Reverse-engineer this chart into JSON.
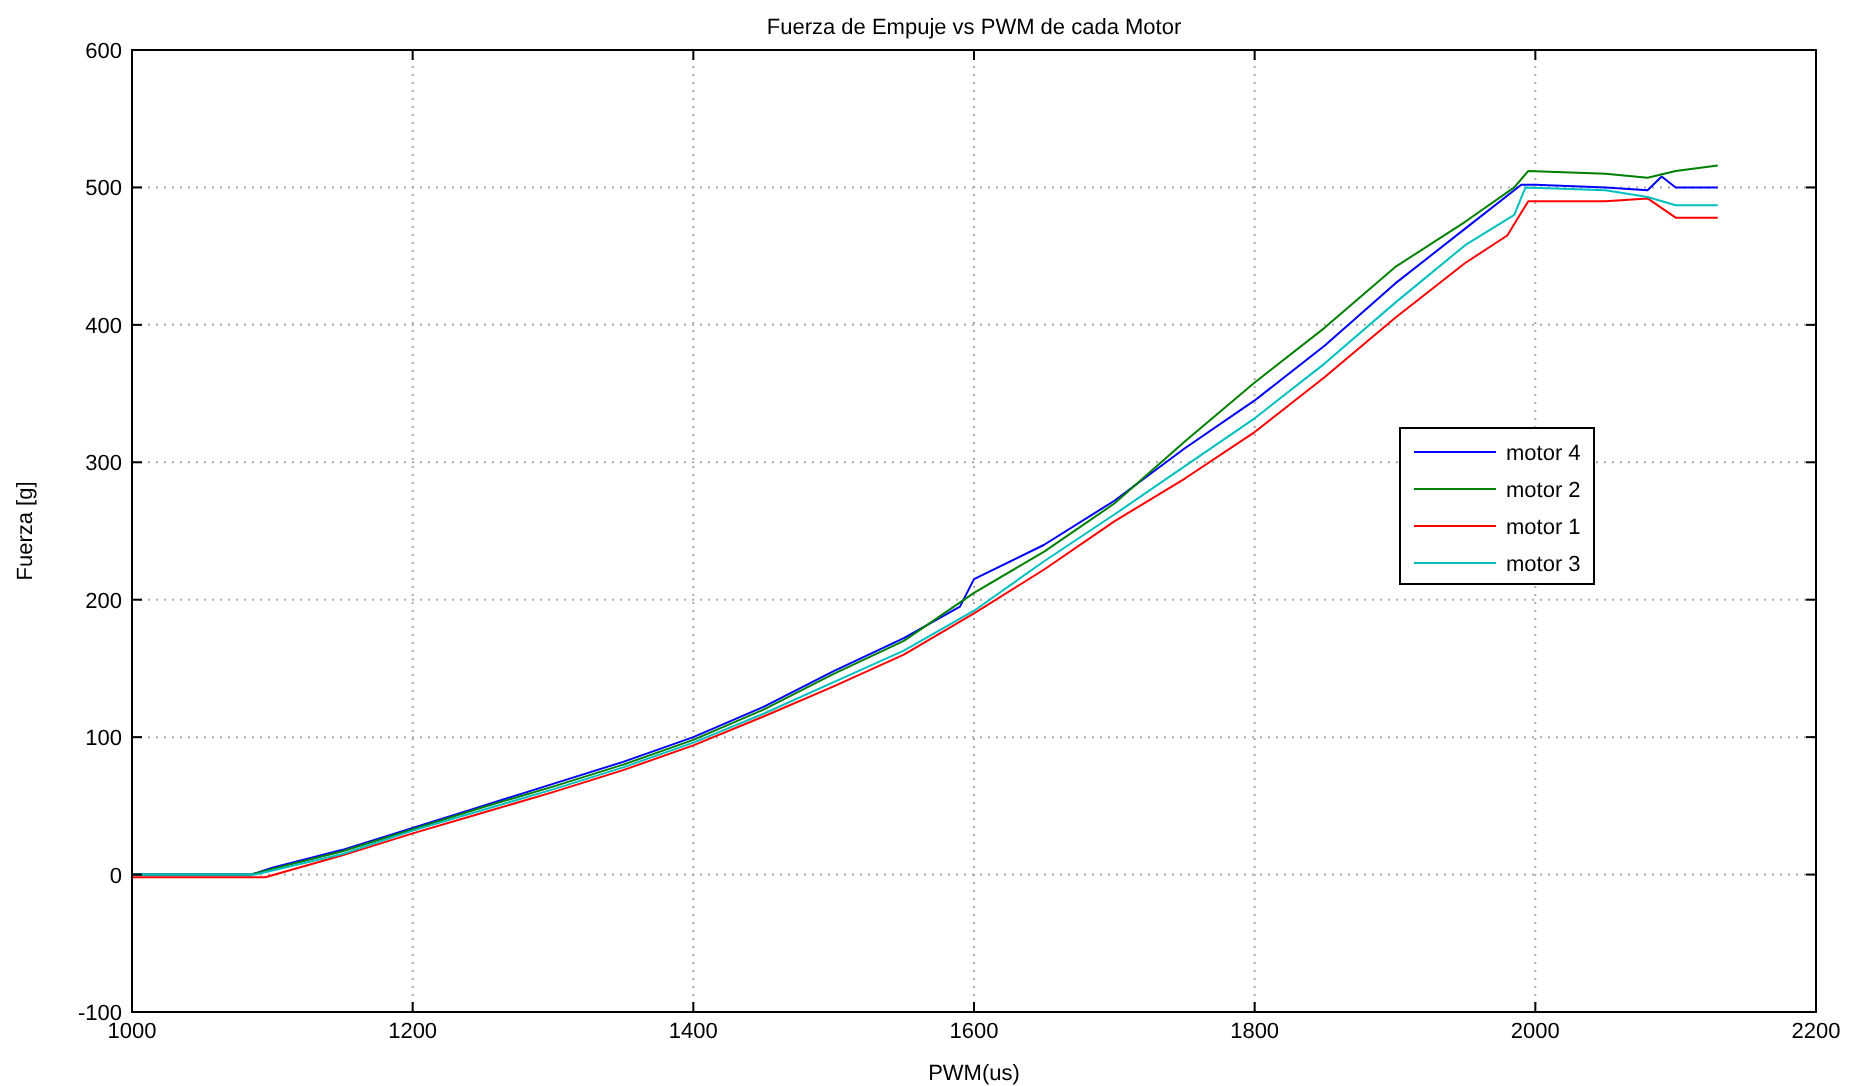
{
  "chart_data": {
    "type": "line",
    "title": "Fuerza de Empuje  vs PWM de cada Motor",
    "xlabel": "PWM(us)",
    "ylabel": "Fuerza [g]",
    "xlim": [
      1000,
      2200
    ],
    "xticks": [
      1000,
      1200,
      1400,
      1600,
      1800,
      2000,
      2200
    ],
    "ylim": [
      -100,
      600
    ],
    "yticks": [
      -100,
      0,
      100,
      200,
      300,
      400,
      500,
      600
    ],
    "grid": true,
    "legend": "right",
    "line_style": "solid",
    "marker": "none",
    "series": [
      {
        "name": "motor 4",
        "color": "#0000ff",
        "x": [
          1000,
          1085,
          1100,
          1150,
          1200,
          1250,
          1300,
          1350,
          1400,
          1450,
          1500,
          1550,
          1590,
          1600,
          1650,
          1700,
          1750,
          1800,
          1850,
          1900,
          1950,
          1990,
          2000,
          2050,
          2080,
          2090,
          2100,
          2130
        ],
        "values": [
          0,
          0,
          5,
          18,
          34,
          50,
          66,
          82,
          100,
          122,
          148,
          172,
          195,
          215,
          240,
          272,
          310,
          345,
          385,
          430,
          470,
          502,
          502,
          500,
          498,
          508,
          500,
          500
        ]
      },
      {
        "name": "motor 2",
        "color": "#008000",
        "x": [
          1000,
          1085,
          1100,
          1150,
          1200,
          1250,
          1300,
          1350,
          1400,
          1450,
          1500,
          1550,
          1600,
          1650,
          1700,
          1750,
          1800,
          1850,
          1900,
          1950,
          1985,
          1995,
          2050,
          2080,
          2100,
          2130
        ],
        "values": [
          0,
          0,
          4,
          17,
          33,
          49,
          64,
          80,
          98,
          120,
          146,
          170,
          205,
          235,
          270,
          315,
          358,
          398,
          442,
          475,
          500,
          512,
          510,
          507,
          512,
          516
        ]
      },
      {
        "name": "motor 1",
        "color": "#ff0000",
        "x": [
          1000,
          1095,
          1150,
          1200,
          1250,
          1300,
          1350,
          1400,
          1450,
          1500,
          1550,
          1600,
          1650,
          1700,
          1750,
          1800,
          1850,
          1900,
          1950,
          1980,
          1995,
          2050,
          2080,
          2100,
          2130
        ],
        "values": [
          -2,
          -2,
          14,
          30,
          45,
          60,
          76,
          94,
          115,
          137,
          160,
          190,
          222,
          257,
          288,
          322,
          362,
          405,
          445,
          465,
          490,
          490,
          492,
          478,
          478
        ]
      },
      {
        "name": "motor 3",
        "color": "#00bfbf",
        "x": [
          1000,
          1088,
          1150,
          1200,
          1250,
          1300,
          1350,
          1400,
          1450,
          1500,
          1550,
          1600,
          1650,
          1700,
          1750,
          1800,
          1850,
          1900,
          1950,
          1985,
          1993,
          2050,
          2080,
          2100,
          2130
        ],
        "values": [
          0,
          0,
          15,
          32,
          47,
          62,
          78,
          96,
          117,
          140,
          163,
          192,
          228,
          262,
          297,
          332,
          372,
          416,
          458,
          480,
          500,
          498,
          493,
          487,
          487
        ]
      }
    ]
  }
}
